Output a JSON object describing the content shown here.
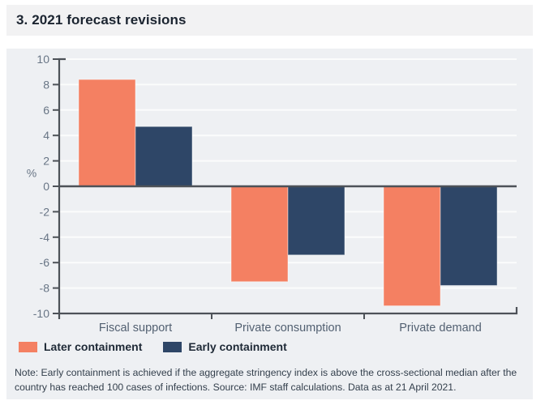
{
  "title": "3. 2021 forecast revisions",
  "legend": {
    "items": [
      {
        "label": "Later containment",
        "color": "#f48062"
      },
      {
        "label": "Early containment",
        "color": "#2e4667"
      }
    ]
  },
  "note": "Note: Early containment is achieved if the aggregate stringency index is above the cross-sectional median after the country has reached 100 cases of infections. Source: IMF staff calculations. Data as at 21 April 2021.",
  "colors": {
    "panel_background": "#eef0f3",
    "title_bar_background": "#f2f2f3",
    "gridline": "#ffffff",
    "axis": "#4d5258",
    "zero_line": "#4d5258",
    "tick_label": "#687585",
    "category_label": "#526071",
    "series_later": "#f48062",
    "series_early": "#2e4667"
  },
  "chart_data": {
    "type": "bar",
    "title": "3. 2021 forecast revisions",
    "categories": [
      "Fiscal support",
      "Private consumption",
      "Private demand"
    ],
    "series": [
      {
        "name": "Later containment",
        "color": "#f48062",
        "values": [
          8.4,
          -7.5,
          -9.4
        ]
      },
      {
        "name": "Early containment",
        "color": "#2e4667",
        "values": [
          4.7,
          -5.4,
          -7.8
        ]
      }
    ],
    "xlabel": "",
    "ylabel": "%",
    "ylim": [
      -10,
      10
    ],
    "yticks": [
      10,
      8,
      6,
      4,
      2,
      0,
      -2,
      -4,
      -6,
      -8,
      -10
    ],
    "grid": true,
    "legend_position": "bottom"
  }
}
